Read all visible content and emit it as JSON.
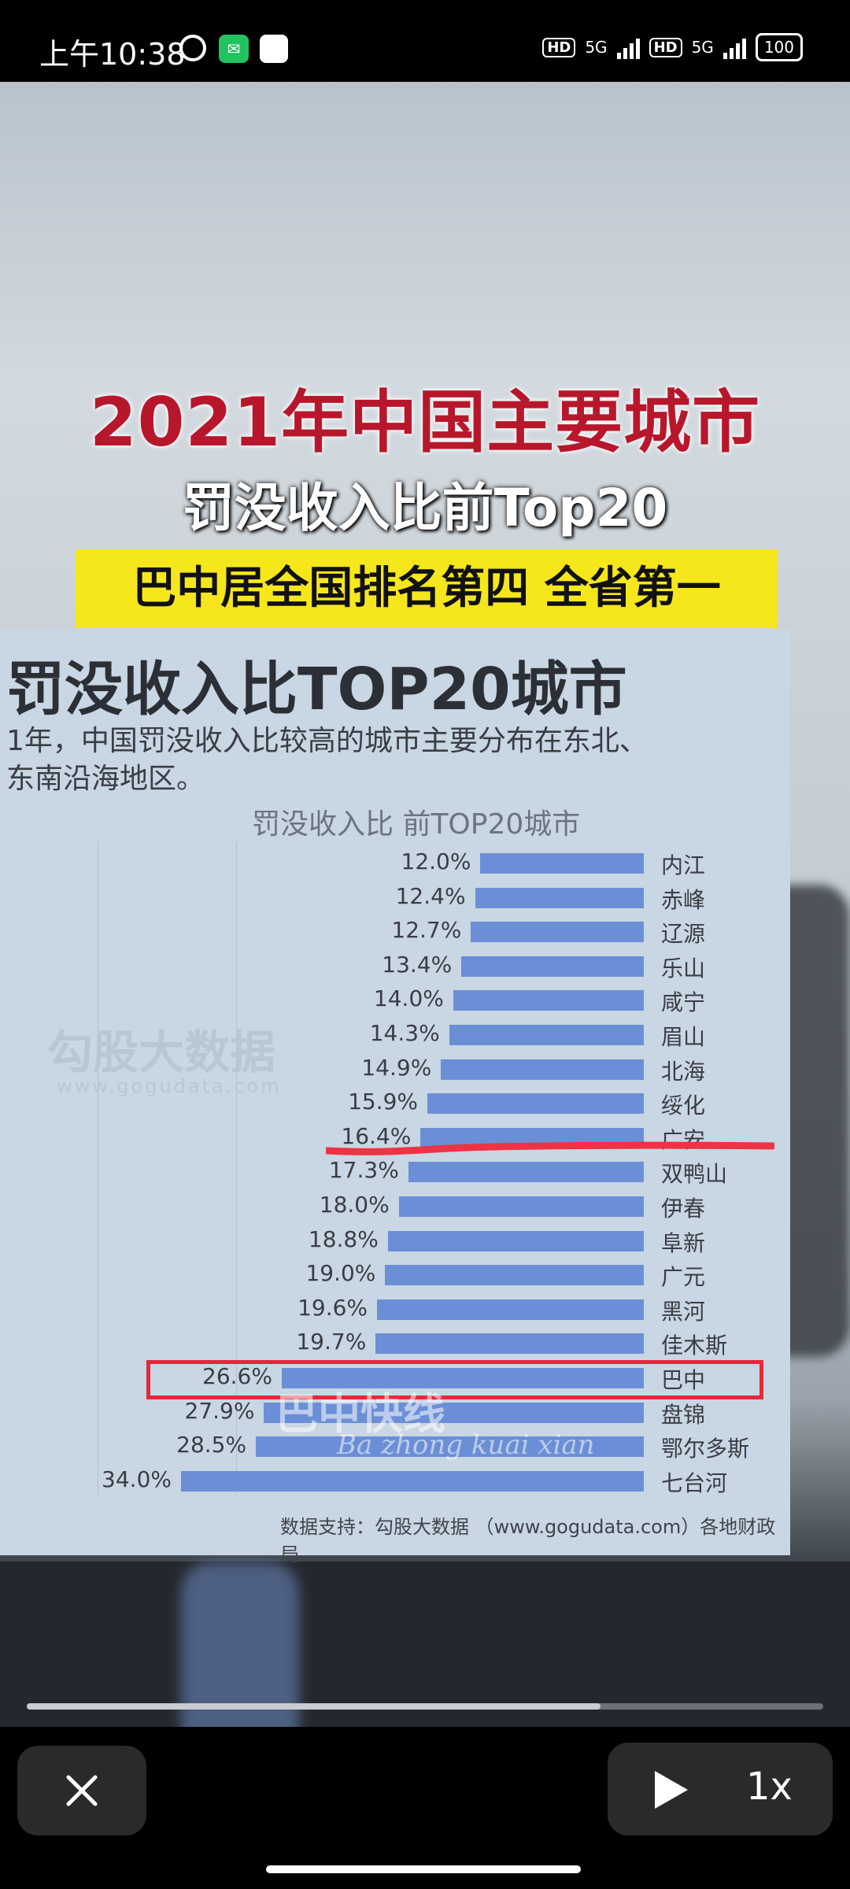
{
  "status_bar": {
    "time": "上午10:38",
    "wechat_icon": "wechat-icon",
    "hd1": "HD",
    "net1": "5G",
    "hd2": "HD",
    "net2": "5G",
    "battery": "100"
  },
  "video": {
    "headline_red": "2021年中国主要城市",
    "headline_white": "罚没收入比前Top20",
    "headline_yellow": "巴中居全国排名第四 全省第一",
    "panel_title": "罚没收入比TOP20城市",
    "panel_desc_line1": "1年，中国罚没收入比较高的城市主要分布在东北、",
    "panel_desc_line2": "东南沿海地区。",
    "chart_title": "罚没收入比 前TOP20城市",
    "watermark_cn": "勾股大数据",
    "watermark_url": "www.gogudata.com",
    "source": "数据支持：勾股大数据 （www.gogudata.com）各地财政局",
    "overlay_logo_cn": "巴中快线",
    "overlay_logo_pinyin": "Ba zhong kuai xian"
  },
  "chart_data": {
    "type": "bar",
    "orientation": "horizontal",
    "title": "罚没收入比 前TOP20城市",
    "categories": [
      "内江",
      "赤峰",
      "辽源",
      "乐山",
      "咸宁",
      "眉山",
      "北海",
      "绥化",
      "广安",
      "双鸭山",
      "伊春",
      "阜新",
      "广元",
      "黑河",
      "佳木斯",
      "巴中",
      "盘锦",
      "鄂尔多斯",
      "七台河"
    ],
    "value_labels": [
      "12.0%",
      "12.4%",
      "12.7%",
      "13.4%",
      "14.0%",
      "14.3%",
      "14.9%",
      "15.9%",
      "16.4%",
      "17.3%",
      "18.0%",
      "18.8%",
      "19.0%",
      "19.6%",
      "19.7%",
      "26.6%",
      "27.9%",
      "28.5%",
      "34.0%"
    ],
    "values": [
      12.0,
      12.4,
      12.7,
      13.4,
      14.0,
      14.3,
      14.9,
      15.9,
      16.4,
      17.3,
      18.0,
      18.8,
      19.0,
      19.6,
      19.7,
      26.6,
      27.9,
      28.5,
      34.0
    ],
    "xlim": [
      0,
      34.0
    ],
    "highlight": "巴中",
    "bar_color": "#6b8fd6"
  },
  "player": {
    "progress": 0.72,
    "speed_label": "1x"
  }
}
